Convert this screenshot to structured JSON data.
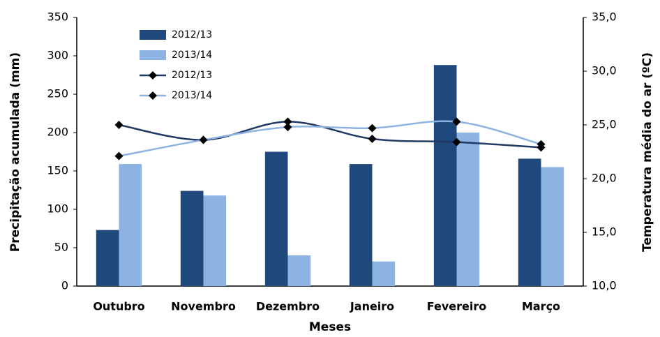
{
  "chart_data": {
    "type": "bar",
    "xlabel": "Meses",
    "ylabel": "Precipitação acumulada (mm)",
    "y2label": "Temperatura média do ar (ºC)",
    "categories": [
      "Outubro",
      "Novembro",
      "Dezembro",
      "Janeiro",
      "Fevereiro",
      "Março"
    ],
    "series": [
      {
        "name": "2012/13",
        "type": "bar",
        "color": "#1f497d",
        "values": [
          73,
          124,
          175,
          159,
          288,
          166
        ]
      },
      {
        "name": "2013/14",
        "type": "bar",
        "color": "#8db3e2",
        "values": [
          159,
          118,
          40,
          32,
          200,
          155
        ]
      },
      {
        "name": "2012/13",
        "type": "line",
        "axis": "y2",
        "color": "#1f3864",
        "values": [
          25.0,
          23.6,
          25.3,
          23.7,
          23.4,
          22.9
        ]
      },
      {
        "name": "2013/14",
        "type": "line",
        "axis": "y2",
        "color": "#8db3e2",
        "values": [
          22.1,
          23.6,
          24.8,
          24.7,
          25.3,
          23.2
        ]
      }
    ],
    "ylim": [
      0,
      350
    ],
    "yticks": [
      0,
      50,
      100,
      150,
      200,
      250,
      300,
      350
    ],
    "y2lim": [
      10,
      35
    ],
    "y2ticks": [
      {
        "value": 10,
        "label": "10,0"
      },
      {
        "value": 15,
        "label": "15,0"
      },
      {
        "value": 20,
        "label": "20,0"
      },
      {
        "value": 25,
        "label": "25,0"
      },
      {
        "value": 30,
        "label": "30,0"
      },
      {
        "value": 35,
        "label": "35,0"
      }
    ],
    "legend": "upper left"
  }
}
